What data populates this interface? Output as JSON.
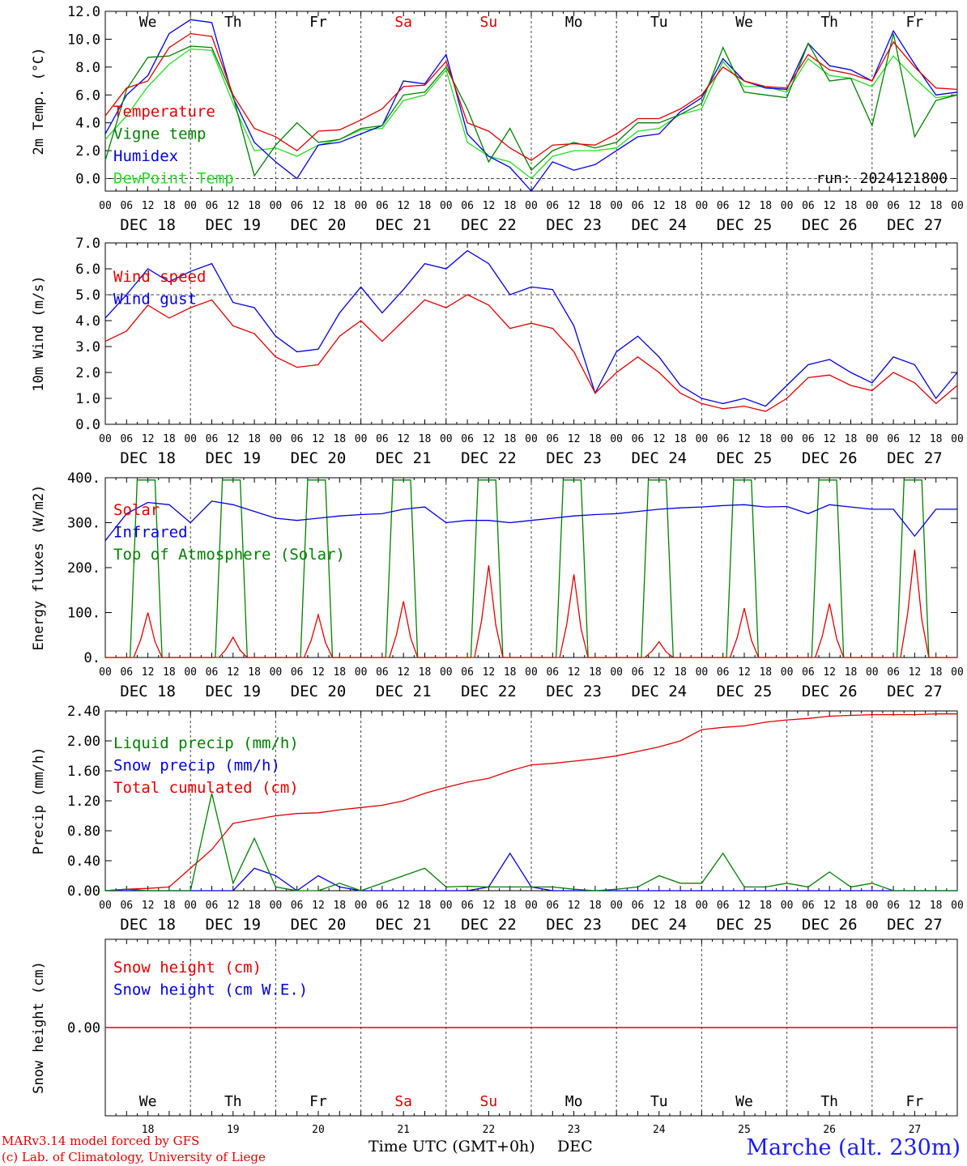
{
  "colors": {
    "red": "#e00000",
    "blue": "#0000e0",
    "green": "#008000",
    "lightgreen": "#22dd22",
    "gray": "#444444",
    "orange": "#e08000",
    "axis": "#000000"
  },
  "days": {
    "weekdays": [
      "We",
      "Th",
      "Fr",
      "Sa",
      "Su",
      "Mo",
      "Tu",
      "We",
      "Th",
      "Fr"
    ],
    "weekday_colors": [
      "black",
      "black",
      "black",
      "red",
      "red",
      "black",
      "black",
      "black",
      "black",
      "black"
    ],
    "dates": [
      "DEC 18",
      "DEC 19",
      "DEC 20",
      "DEC 21",
      "DEC 22",
      "DEC 23",
      "DEC 24",
      "DEC 25",
      "DEC 26",
      "DEC 27"
    ],
    "day_numbers": [
      "18",
      "19",
      "20",
      "21",
      "22",
      "23",
      "24",
      "25",
      "26",
      "27"
    ],
    "hour_ticks": [
      "00",
      "06",
      "12",
      "18"
    ],
    "final_tick": "00"
  },
  "chart_data": [
    {
      "id": "temperature",
      "type": "line",
      "ylabel": "2m Temp. (°C)",
      "ylim": [
        -0.9,
        12.0
      ],
      "yticks": [
        "0.0",
        "2.0",
        "4.0",
        "6.0",
        "8.0",
        "10.0",
        "12.0"
      ],
      "ytick_values": [
        0,
        2,
        4,
        6,
        8,
        10,
        12
      ],
      "ref_line": 0,
      "annotation": "run: 2024121800",
      "x_hours": [
        0,
        6,
        12,
        18,
        24,
        30,
        36,
        42,
        48,
        54,
        60,
        66,
        72,
        78,
        84,
        90,
        96,
        102,
        108,
        114,
        120,
        126,
        132,
        138,
        144,
        150,
        156,
        162,
        168,
        174,
        180,
        186,
        192,
        198,
        204,
        210,
        216,
        222,
        228,
        234,
        240
      ],
      "series": [
        {
          "name": "Temperature",
          "color": "red",
          "values": [
            4.5,
            6.5,
            7.0,
            9.4,
            10.4,
            10.2,
            6.0,
            3.6,
            3.0,
            2.0,
            3.4,
            3.5,
            4.2,
            5.0,
            6.6,
            6.7,
            8.4,
            4.0,
            3.4,
            2.2,
            1.3,
            2.4,
            2.5,
            2.4,
            3.2,
            4.3,
            4.3,
            5.0,
            6.0,
            8.0,
            7.0,
            6.6,
            6.5,
            8.9,
            7.8,
            7.5,
            7.0,
            9.8,
            8.0,
            6.5,
            6.4
          ]
        },
        {
          "name": "Vigne temp",
          "color": "green",
          "values": [
            1.3,
            6.4,
            8.7,
            8.8,
            9.5,
            9.4,
            5.9,
            0.2,
            2.4,
            4.0,
            2.6,
            2.8,
            3.6,
            3.8,
            6.0,
            6.2,
            8.0,
            5.0,
            1.2,
            3.6,
            0.6,
            2.0,
            2.6,
            2.2,
            2.6,
            4.0,
            4.0,
            4.6,
            5.4,
            9.4,
            6.2,
            6.0,
            5.8,
            9.7,
            7.0,
            7.2,
            3.8,
            10.4,
            3.0,
            5.6,
            6.0
          ]
        },
        {
          "name": "Humidex",
          "color": "blue",
          "values": [
            3.2,
            6.0,
            7.4,
            10.4,
            11.4,
            11.2,
            5.8,
            2.6,
            1.2,
            0.0,
            2.4,
            2.6,
            3.2,
            3.8,
            7.0,
            6.8,
            8.9,
            3.2,
            1.6,
            0.8,
            -0.9,
            1.2,
            0.6,
            1.0,
            2.0,
            3.0,
            3.2,
            4.8,
            5.8,
            8.6,
            7.0,
            6.5,
            6.4,
            9.7,
            8.1,
            7.8,
            7.0,
            10.6,
            8.2,
            6.0,
            6.2
          ]
        },
        {
          "name": "DewPoint Temp",
          "color": "lightgreen",
          "values": [
            2.8,
            4.5,
            6.6,
            8.2,
            9.3,
            9.2,
            5.4,
            2.0,
            2.2,
            1.6,
            2.4,
            2.8,
            3.5,
            3.6,
            5.6,
            6.0,
            7.8,
            2.6,
            1.6,
            1.2,
            0.0,
            1.6,
            2.0,
            2.0,
            2.2,
            3.4,
            3.6,
            4.6,
            5.0,
            8.4,
            6.6,
            6.6,
            6.2,
            8.6,
            7.4,
            7.2,
            6.6,
            8.8,
            7.2,
            5.8,
            6.0
          ]
        }
      ]
    },
    {
      "id": "wind",
      "type": "line",
      "ylabel": "10m Wind (m/s)",
      "ylim": [
        0,
        7.0
      ],
      "yticks": [
        "0.0",
        "1.0",
        "2.0",
        "3.0",
        "4.0",
        "5.0",
        "6.0",
        "7.0"
      ],
      "ytick_values": [
        0,
        1,
        2,
        3,
        4,
        5,
        6,
        7
      ],
      "ref_line": 5,
      "x_hours": [
        0,
        6,
        12,
        18,
        24,
        30,
        36,
        42,
        48,
        54,
        60,
        66,
        72,
        78,
        84,
        90,
        96,
        102,
        108,
        114,
        120,
        126,
        132,
        138,
        144,
        150,
        156,
        162,
        168,
        174,
        180,
        186,
        192,
        198,
        204,
        210,
        216,
        222,
        228,
        234,
        240
      ],
      "series": [
        {
          "name": "Wind speed",
          "color": "red",
          "values": [
            3.2,
            3.6,
            4.6,
            4.1,
            4.5,
            4.8,
            3.8,
            3.5,
            2.6,
            2.2,
            2.3,
            3.4,
            4.0,
            3.2,
            4.0,
            4.8,
            4.5,
            5.0,
            4.6,
            3.7,
            3.9,
            3.7,
            2.8,
            1.2,
            2.0,
            2.6,
            2.0,
            1.2,
            0.8,
            0.6,
            0.7,
            0.5,
            1.0,
            1.8,
            1.9,
            1.5,
            1.3,
            2.0,
            1.6,
            0.8,
            1.5
          ]
        },
        {
          "name": "Wind gust",
          "color": "blue",
          "values": [
            4.1,
            5.0,
            6.0,
            5.5,
            5.9,
            6.2,
            4.7,
            4.5,
            3.4,
            2.8,
            2.9,
            4.3,
            5.3,
            4.3,
            5.2,
            6.2,
            6.0,
            6.7,
            6.2,
            5.0,
            5.3,
            5.2,
            3.8,
            1.2,
            2.8,
            3.4,
            2.6,
            1.5,
            1.0,
            0.8,
            1.0,
            0.7,
            1.5,
            2.3,
            2.5,
            2.0,
            1.6,
            2.6,
            2.3,
            1.0,
            2.0
          ]
        }
      ]
    },
    {
      "id": "energy",
      "type": "line",
      "ylabel": "Energy fluxes (W/m2)",
      "ylim": [
        0,
        400
      ],
      "yticks": [
        "0.",
        "100.",
        "200.",
        "300.",
        "400."
      ],
      "ytick_values": [
        0,
        100,
        200,
        300,
        400
      ],
      "solar_peaks": [
        100,
        45,
        95,
        125,
        205,
        185,
        35,
        110,
        120,
        240
      ],
      "toa_peak": 395,
      "x_hours_ir": [
        0,
        6,
        12,
        18,
        24,
        30,
        36,
        42,
        48,
        54,
        60,
        66,
        72,
        78,
        84,
        90,
        96,
        102,
        108,
        114,
        120,
        126,
        132,
        138,
        144,
        150,
        156,
        162,
        168,
        174,
        180,
        186,
        192,
        198,
        204,
        210,
        216,
        222,
        228,
        234,
        240
      ],
      "series": [
        {
          "name": "Solar",
          "color": "red",
          "values": "daily peak at 12 UTC: see solar_peaks"
        },
        {
          "name": "Infrared",
          "color": "blue",
          "values": [
            260,
            320,
            345,
            340,
            300,
            348,
            340,
            325,
            310,
            305,
            310,
            315,
            318,
            320,
            330,
            335,
            300,
            305,
            305,
            300,
            305,
            310,
            315,
            318,
            320,
            325,
            330,
            333,
            335,
            338,
            340,
            335,
            336,
            320,
            340,
            335,
            330,
            330,
            270,
            330,
            330
          ]
        },
        {
          "name": "Top of Atmosphere (Solar)",
          "color": "green",
          "values": "daily envelope, 0 before 07 UTC and after 16 UTC, 395 at midday"
        }
      ]
    },
    {
      "id": "precip",
      "type": "line",
      "ylabel": "Precip (mm/h)",
      "ylim": [
        0,
        2.4
      ],
      "yticks": [
        "0.00",
        "0.40",
        "0.80",
        "1.20",
        "1.60",
        "2.00",
        "2.40"
      ],
      "ytick_values": [
        0,
        0.4,
        0.8,
        1.2,
        1.6,
        2.0,
        2.4
      ],
      "x_hours": [
        0,
        6,
        12,
        18,
        24,
        30,
        36,
        42,
        48,
        54,
        60,
        66,
        72,
        78,
        84,
        90,
        96,
        102,
        108,
        114,
        120,
        126,
        132,
        138,
        144,
        150,
        156,
        162,
        168,
        174,
        180,
        186,
        192,
        198,
        204,
        210,
        216,
        222,
        228,
        234,
        240
      ],
      "series": [
        {
          "name": "Liquid precip (mm/h)",
          "color": "green",
          "values": [
            0,
            0.02,
            0.0,
            0.0,
            0.0,
            1.3,
            0.1,
            0.7,
            0.05,
            0.0,
            0.0,
            0.1,
            0.0,
            0.1,
            0.2,
            0.3,
            0.05,
            0.06,
            0.05,
            0.05,
            0.05,
            0.05,
            0.02,
            0.0,
            0.02,
            0.05,
            0.2,
            0.1,
            0.1,
            0.5,
            0.05,
            0.05,
            0.1,
            0.05,
            0.25,
            0.05,
            0.1,
            0.0,
            0.0,
            0.0,
            0.0
          ]
        },
        {
          "name": "Snow precip (mm/h)",
          "color": "blue",
          "values": [
            0,
            0,
            0,
            0,
            0,
            0,
            0,
            0.3,
            0.2,
            0,
            0.2,
            0.05,
            0,
            0,
            0,
            0,
            0,
            0,
            0.05,
            0.5,
            0.05,
            0,
            0,
            0,
            0,
            0,
            0,
            0,
            0,
            0,
            0,
            0,
            0,
            0,
            0,
            0,
            0,
            0,
            0,
            0,
            0
          ]
        },
        {
          "name": "Total cumulated (cm)",
          "color": "red",
          "values": [
            0.0,
            0.02,
            0.03,
            0.05,
            0.3,
            0.55,
            0.9,
            0.95,
            1.0,
            1.03,
            1.04,
            1.08,
            1.11,
            1.14,
            1.2,
            1.3,
            1.38,
            1.45,
            1.5,
            1.6,
            1.68,
            1.7,
            1.73,
            1.76,
            1.8,
            1.86,
            1.92,
            2.0,
            2.15,
            2.18,
            2.2,
            2.25,
            2.28,
            2.3,
            2.33,
            2.34,
            2.35,
            2.35,
            2.35,
            2.36,
            2.36
          ]
        }
      ]
    },
    {
      "id": "snow",
      "type": "line",
      "ylabel": "Snow height (cm)",
      "ylim": [
        -1,
        1
      ],
      "yticks": [
        "0.00"
      ],
      "ytick_values": [
        0
      ],
      "series": [
        {
          "name": "Snow height (cm)",
          "color": "red",
          "values": [
            0,
            0
          ]
        },
        {
          "name": "Snow height (cm W.E.)",
          "color": "blue",
          "values": [
            0,
            0
          ]
        }
      ]
    }
  ],
  "footer": {
    "credit1": "MARv3.14 model forced by GFS",
    "credit2": "(c) Lab. of Climatology, University of Liege",
    "xaxis_title": "Time UTC (GMT+0h)",
    "month": "DEC",
    "station": "Marche (alt. 230m)"
  }
}
